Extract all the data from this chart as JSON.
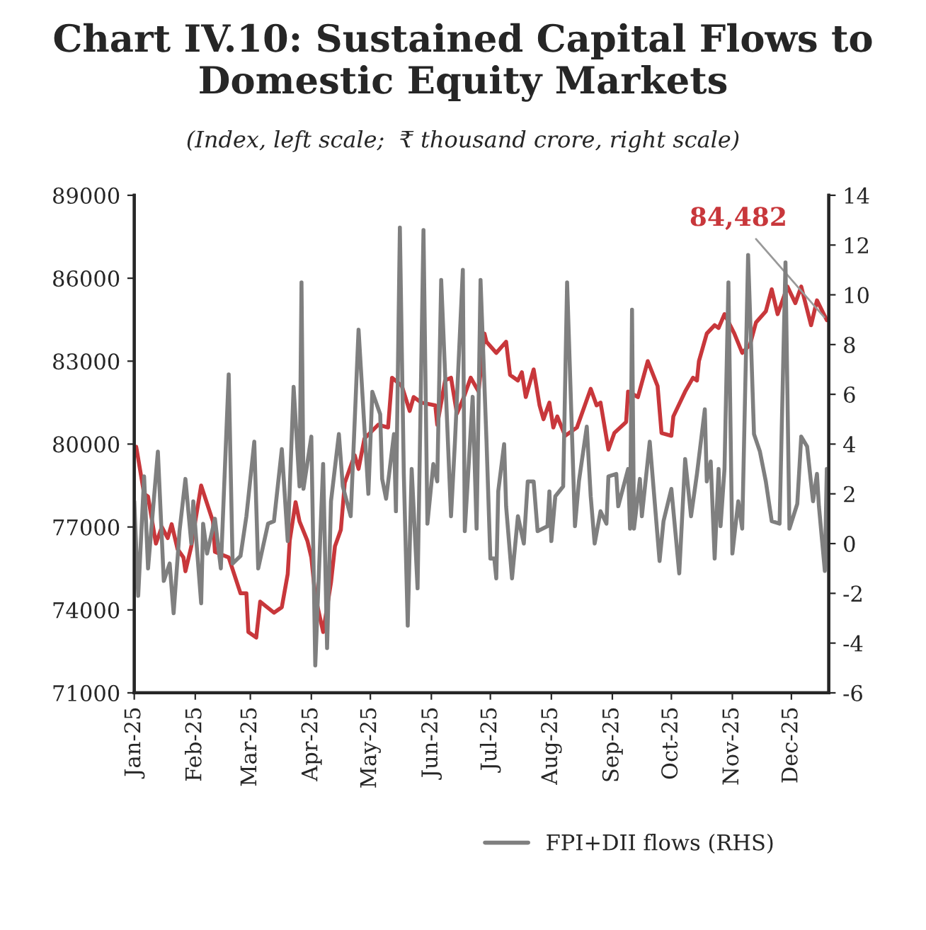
{
  "chart_data": {
    "type": "line",
    "title": "Chart IV.10: Sustained Capital Flows to Domestic Equity Markets",
    "subtitle": "(Index, left scale;  ₹ thousand crore, right scale)",
    "legend": "bottom",
    "grid": false,
    "marker": "none",
    "line_style": "solid",
    "xlim": [
      "2025-01-01",
      "2025-12-20"
    ],
    "xticks": [
      {
        "value": "2025-01-01",
        "label": "Jan-25"
      },
      {
        "value": "2025-02-01",
        "label": "Feb-25"
      },
      {
        "value": "2025-03-01",
        "label": "Mar-25"
      },
      {
        "value": "2025-04-01",
        "label": "Apr-25"
      },
      {
        "value": "2025-05-01",
        "label": "May-25"
      },
      {
        "value": "2025-06-01",
        "label": "Jun-25"
      },
      {
        "value": "2025-07-01",
        "label": "Jul-25"
      },
      {
        "value": "2025-08-01",
        "label": "Aug-25"
      },
      {
        "value": "2025-09-01",
        "label": "Sep-25"
      },
      {
        "value": "2025-10-01",
        "label": "Oct-25"
      },
      {
        "value": "2025-11-01",
        "label": "Nov-25"
      },
      {
        "value": "2025-12-01",
        "label": "Dec-25"
      }
    ],
    "ylim": [
      71000,
      89000
    ],
    "yticks": [
      71000,
      74000,
      77000,
      80000,
      83000,
      86000,
      89000
    ],
    "y2lim": [
      -6,
      14
    ],
    "y2ticks": [
      -6,
      -4,
      -2,
      0,
      2,
      4,
      6,
      8,
      10,
      12,
      14
    ],
    "annotations": [
      {
        "text": "84,482",
        "x": "2025-12-19",
        "y": 84482
      }
    ],
    "series": [
      {
        "color": "#c8373b",
        "x": [
          "2025-01-02",
          "2025-01-06",
          "2025-01-08",
          "2025-01-12",
          "2025-01-15",
          "2025-01-18",
          "2025-01-20",
          "2025-01-23",
          "2025-01-26",
          "2025-01-27",
          "2025-01-30",
          "2025-02-01",
          "2025-02-04",
          "2025-02-10",
          "2025-02-11",
          "2025-02-18",
          "2025-02-24",
          "2025-02-27",
          "2025-02-28",
          "2025-03-04",
          "2025-03-06",
          "2025-03-13",
          "2025-03-17",
          "2025-03-20",
          "2025-03-21",
          "2025-03-24",
          "2025-03-26",
          "2025-03-30",
          "2025-04-01",
          "2025-04-03",
          "2025-04-07",
          "2025-04-11",
          "2025-04-13",
          "2025-04-16",
          "2025-04-18",
          "2025-04-23",
          "2025-04-25",
          "2025-04-28",
          "2025-05-05",
          "2025-05-10",
          "2025-05-12",
          "2025-05-17",
          "2025-05-21",
          "2025-05-23",
          "2025-05-27",
          "2025-06-03",
          "2025-06-04",
          "2025-06-08",
          "2025-06-11",
          "2025-06-14",
          "2025-06-17",
          "2025-06-21",
          "2025-06-25",
          "2025-06-28",
          "2025-06-29",
          "2025-07-04",
          "2025-07-09",
          "2025-07-11",
          "2025-07-15",
          "2025-07-17",
          "2025-07-19",
          "2025-07-23",
          "2025-07-26",
          "2025-07-28",
          "2025-07-31",
          "2025-08-02",
          "2025-08-04",
          "2025-08-08",
          "2025-08-14",
          "2025-08-21",
          "2025-08-24",
          "2025-08-26",
          "2025-08-30",
          "2025-09-02",
          "2025-09-08",
          "2025-09-09",
          "2025-09-14",
          "2025-09-19",
          "2025-09-24",
          "2025-09-26",
          "2025-10-01",
          "2025-10-02",
          "2025-10-08",
          "2025-10-12",
          "2025-10-14",
          "2025-10-15",
          "2025-10-19",
          "2025-10-23",
          "2025-10-25",
          "2025-10-28",
          "2025-11-02",
          "2025-11-06",
          "2025-11-10",
          "2025-11-13",
          "2025-11-18",
          "2025-11-21",
          "2025-11-24",
          "2025-11-29",
          "2025-12-03",
          "2025-12-06",
          "2025-12-11",
          "2025-12-14",
          "2025-12-19"
        ],
        "values": [
          79900,
          78200,
          78100,
          76400,
          77000,
          76600,
          77100,
          76200,
          75900,
          75400,
          76300,
          77200,
          78500,
          77200,
          76100,
          75900,
          74600,
          74600,
          73200,
          73000,
          74300,
          73900,
          74100,
          75300,
          76500,
          77900,
          77200,
          76500,
          75900,
          74500,
          73200,
          75000,
          76300,
          76900,
          78600,
          79600,
          79100,
          80200,
          80700,
          80600,
          82400,
          82100,
          81200,
          81700,
          81500,
          81400,
          80700,
          82300,
          82400,
          81100,
          81600,
          82400,
          81900,
          84000,
          83700,
          83300,
          83700,
          82500,
          82300,
          82600,
          81700,
          82700,
          81400,
          80900,
          81500,
          80600,
          81000,
          80300,
          80600,
          82000,
          81400,
          81500,
          79800,
          80400,
          80800,
          81900,
          81700,
          83000,
          82100,
          80400,
          80300,
          81000,
          81900,
          82400,
          82300,
          83000,
          84000,
          84300,
          84200,
          84700,
          84000,
          83300,
          83600,
          84400,
          84800,
          85600,
          84700,
          85700,
          85100,
          85700,
          84300,
          85200,
          84482
        ]
      },
      {
        "name": "FPI+DII flows (RHS)",
        "color": "#7f7f7f",
        "axis": "y2",
        "x": [
          "2025-01-01",
          "2025-01-03",
          "2025-01-06",
          "2025-01-08",
          "2025-01-13",
          "2025-01-16",
          "2025-01-19",
          "2025-01-21",
          "2025-01-24",
          "2025-01-27",
          "2025-01-30",
          "2025-01-31",
          "2025-02-04",
          "2025-02-05",
          "2025-02-07",
          "2025-02-11",
          "2025-02-14",
          "2025-02-18",
          "2025-02-20",
          "2025-02-24",
          "2025-02-27",
          "2025-03-03",
          "2025-03-05",
          "2025-03-10",
          "2025-03-13",
          "2025-03-17",
          "2025-03-20",
          "2025-03-23",
          "2025-03-26",
          "2025-03-27",
          "2025-03-28",
          "2025-04-01",
          "2025-04-03",
          "2025-04-07",
          "2025-04-09",
          "2025-04-11",
          "2025-04-15",
          "2025-04-17",
          "2025-04-21",
          "2025-04-25",
          "2025-04-30",
          "2025-05-02",
          "2025-05-06",
          "2025-05-07",
          "2025-05-09",
          "2025-05-13",
          "2025-05-14",
          "2025-05-16",
          "2025-05-18",
          "2025-05-20",
          "2025-05-22",
          "2025-05-25",
          "2025-05-28",
          "2025-05-30",
          "2025-06-02",
          "2025-06-04",
          "2025-06-06",
          "2025-06-11",
          "2025-06-13",
          "2025-06-17",
          "2025-06-18",
          "2025-06-22",
          "2025-06-24",
          "2025-06-26",
          "2025-06-29",
          "2025-07-01",
          "2025-07-03",
          "2025-07-04",
          "2025-07-05",
          "2025-07-08",
          "2025-07-09",
          "2025-07-12",
          "2025-07-15",
          "2025-07-18",
          "2025-07-20",
          "2025-07-23",
          "2025-07-25",
          "2025-07-30",
          "2025-07-31",
          "2025-08-01",
          "2025-08-03",
          "2025-08-07",
          "2025-08-09",
          "2025-08-13",
          "2025-08-15",
          "2025-08-19",
          "2025-08-21",
          "2025-08-23",
          "2025-08-26",
          "2025-08-29",
          "2025-08-30",
          "2025-09-03",
          "2025-09-04",
          "2025-09-09",
          "2025-09-10",
          "2025-09-11",
          "2025-09-12",
          "2025-09-15",
          "2025-09-16",
          "2025-09-20",
          "2025-09-25",
          "2025-09-27",
          "2025-10-01",
          "2025-10-05",
          "2025-10-08",
          "2025-10-11",
          "2025-10-14",
          "2025-10-18",
          "2025-10-19",
          "2025-10-21",
          "2025-10-23",
          "2025-10-25",
          "2025-10-26",
          "2025-10-28",
          "2025-10-30",
          "2025-11-01",
          "2025-11-04",
          "2025-11-06",
          "2025-11-09",
          "2025-11-12",
          "2025-11-15",
          "2025-11-18",
          "2025-11-21",
          "2025-11-25",
          "2025-11-28",
          "2025-11-30",
          "2025-12-04",
          "2025-12-06",
          "2025-12-09",
          "2025-12-12",
          "2025-12-14",
          "2025-12-15",
          "2025-12-18",
          "2025-12-19"
        ],
        "values": [
          1.7,
          -2.1,
          2.7,
          -1.0,
          3.7,
          -1.5,
          -0.8,
          -2.8,
          0.5,
          2.6,
          0.0,
          1.7,
          -2.4,
          0.8,
          -0.4,
          1.0,
          -1.0,
          6.8,
          -0.8,
          -0.5,
          1.1,
          4.1,
          -1.0,
          0.8,
          0.9,
          3.8,
          0.1,
          6.3,
          2.3,
          10.5,
          2.2,
          4.3,
          -4.9,
          3.2,
          -4.2,
          1.7,
          4.4,
          2.3,
          1.1,
          8.6,
          2.0,
          6.1,
          5.2,
          2.6,
          1.8,
          4.4,
          1.3,
          12.7,
          2.8,
          -3.3,
          3.0,
          -1.8,
          12.6,
          0.8,
          3.2,
          2.5,
          10.6,
          1.1,
          4.1,
          11.0,
          0.5,
          5.9,
          0.6,
          10.6,
          4.2,
          -0.6,
          -0.6,
          -1.4,
          2.1,
          4.0,
          1.5,
          -1.4,
          1.1,
          0.0,
          2.5,
          2.5,
          0.5,
          0.7,
          2.1,
          0.1,
          1.9,
          2.3,
          10.5,
          0.7,
          2.5,
          4.7,
          1.9,
          0.0,
          1.3,
          0.8,
          2.7,
          2.8,
          1.5,
          3.0,
          0.6,
          9.4,
          0.6,
          2.6,
          1.1,
          4.1,
          -0.7,
          0.9,
          2.2,
          -1.2,
          3.4,
          1.1,
          2.8,
          5.4,
          2.5,
          3.3,
          -0.6,
          3.0,
          0.7,
          3.0,
          10.5,
          -0.4,
          1.7,
          0.6,
          11.6,
          4.4,
          3.7,
          2.5,
          0.9,
          0.8,
          11.3,
          0.6,
          1.6,
          4.3,
          3.9,
          1.7,
          2.8,
          1.5,
          -1.1,
          3.0
        ]
      }
    ]
  }
}
